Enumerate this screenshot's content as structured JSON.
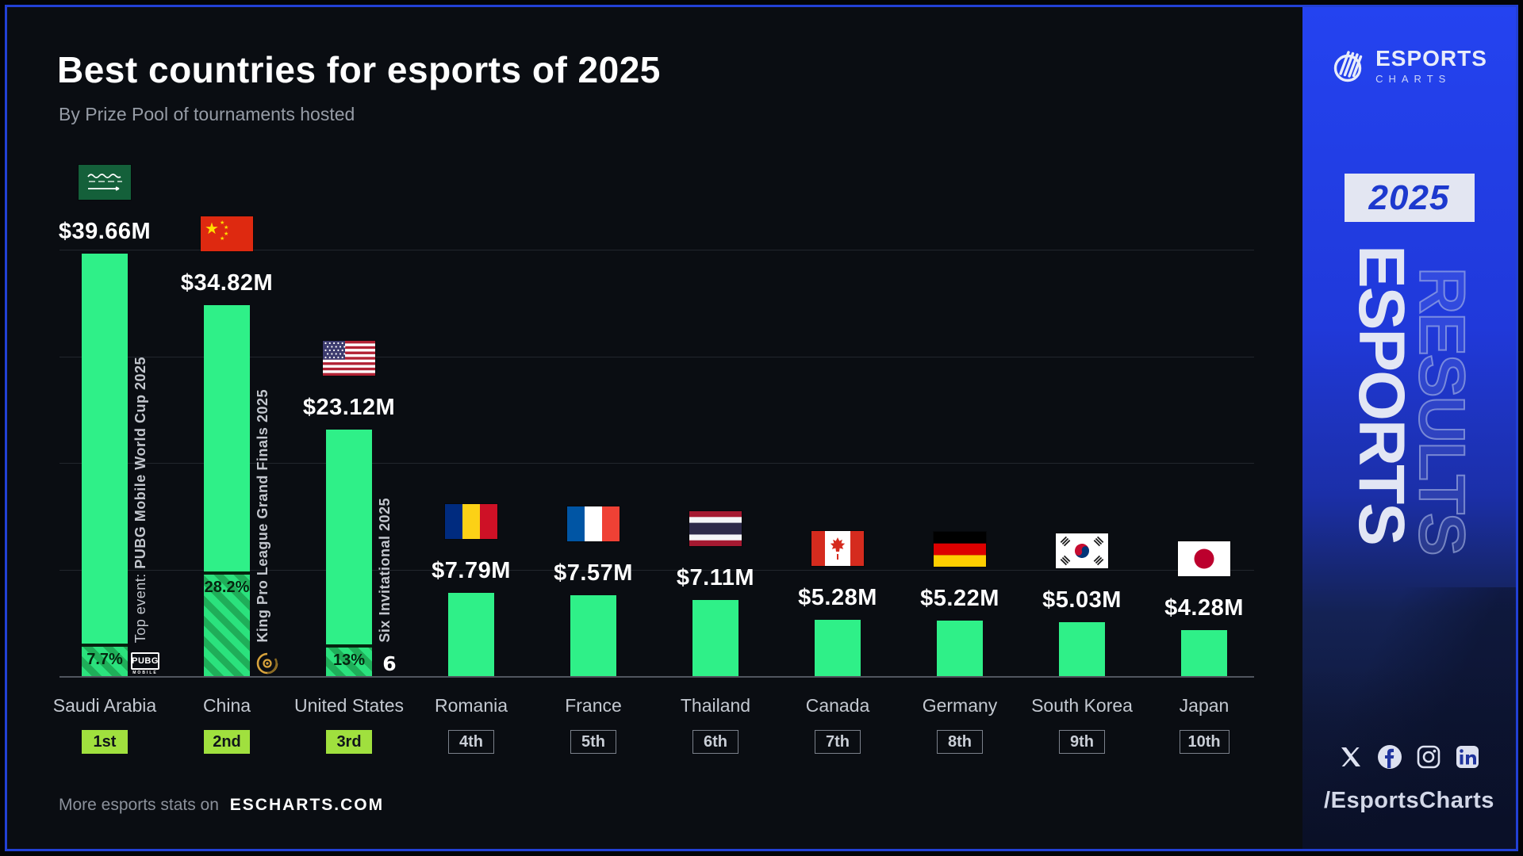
{
  "header": {
    "title": "Best countries for esports of 2025",
    "subtitle": "By Prize Pool of tournaments hosted"
  },
  "footer": {
    "prefix": "More esports stats on",
    "site": "ESCHARTS.COM"
  },
  "sidebar": {
    "brand_top": "ESPORTS",
    "brand_bottom": "CHARTS",
    "year_badge": "2025",
    "vertical_filled": "ESPORTS",
    "vertical_outline": "RESULTS",
    "social_icons": [
      "x-icon",
      "facebook-icon",
      "instagram-icon",
      "linkedin-icon"
    ],
    "handle": "/EsportsCharts"
  },
  "colors": {
    "bar_green": "#2ff088",
    "hatch_green_dark": "#1fae59",
    "lime_badge": "#a0e03e",
    "sidebar_blue": "#2443f0",
    "frame_blue": "#2240d4",
    "background": "#0a0d12"
  },
  "chart_data": {
    "type": "bar",
    "title": "Best countries for esports of 2025",
    "subtitle": "By Prize Pool of tournaments hosted",
    "unit": "USD millions",
    "ylim": [
      0,
      40
    ],
    "gridline_interval": 10,
    "grid": "on",
    "categories": [
      "Saudi Arabia",
      "China",
      "United States",
      "Romania",
      "France",
      "Thailand",
      "Canada",
      "Germany",
      "South Korea",
      "Japan"
    ],
    "values": [
      39.66,
      34.82,
      23.12,
      7.79,
      7.57,
      7.11,
      5.28,
      5.22,
      5.03,
      4.28
    ],
    "bars": [
      {
        "country": "Saudi Arabia",
        "code": "sa",
        "value_m": 39.66,
        "value_label": "$39.66M",
        "rank": "1st",
        "top_event": {
          "prefix": "Top event: ",
          "name": "PUBG Mobile World Cup 2025",
          "share_pct": 7.7,
          "share_label": "7.7%",
          "logo": "pubg-mobile-logo"
        }
      },
      {
        "country": "China",
        "code": "cn",
        "value_m": 34.82,
        "value_label": "$34.82M",
        "rank": "2nd",
        "top_event": {
          "prefix": "",
          "name": "King Pro League Grand Finals 2025",
          "share_pct": 28.2,
          "share_label": "28.2%",
          "logo": "king-pro-league-logo"
        }
      },
      {
        "country": "United States",
        "code": "us",
        "value_m": 23.12,
        "value_label": "$23.12M",
        "rank": "3rd",
        "top_event": {
          "prefix": "",
          "name": "Six Invitational 2025",
          "share_pct": 13,
          "share_label": "13%",
          "logo": "six-invitational-logo"
        }
      },
      {
        "country": "Romania",
        "code": "ro",
        "value_m": 7.79,
        "value_label": "$7.79M",
        "rank": "4th",
        "top_event": null
      },
      {
        "country": "France",
        "code": "fr",
        "value_m": 7.57,
        "value_label": "$7.57M",
        "rank": "5th",
        "top_event": null
      },
      {
        "country": "Thailand",
        "code": "th",
        "value_m": 7.11,
        "value_label": "$7.11M",
        "rank": "6th",
        "top_event": null
      },
      {
        "country": "Canada",
        "code": "ca",
        "value_m": 5.28,
        "value_label": "$5.28M",
        "rank": "7th",
        "top_event": null
      },
      {
        "country": "Germany",
        "code": "de",
        "value_m": 5.22,
        "value_label": "$5.22M",
        "rank": "8th",
        "top_event": null
      },
      {
        "country": "South Korea",
        "code": "kr",
        "value_m": 5.03,
        "value_label": "$5.03M",
        "rank": "9th",
        "top_event": null
      },
      {
        "country": "Japan",
        "code": "jp",
        "value_m": 4.28,
        "value_label": "$4.28M",
        "rank": "10th",
        "top_event": null
      }
    ]
  }
}
